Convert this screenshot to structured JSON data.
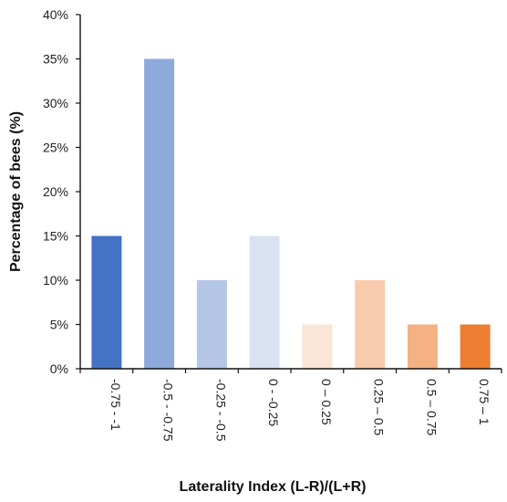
{
  "chart_data": {
    "type": "bar",
    "categories": [
      "-0.75 - -1",
      "-0.5 - -0.75",
      "-0.25 - -0.5",
      "0 - -0.25",
      "0 – 0.25",
      "0.25 – 0.5",
      "0.5 – 0.75",
      "0.75 – 1"
    ],
    "values": [
      15,
      35,
      10,
      15,
      5,
      10,
      5,
      5
    ],
    "bar_colors": [
      "#4472c4",
      "#8eaadb",
      "#b4c7e7",
      "#d9e2f3",
      "#fbe5d6",
      "#f8cbad",
      "#f4b183",
      "#ed7d31"
    ],
    "ylim": [
      0,
      40
    ],
    "yticks": [
      0,
      5,
      10,
      15,
      20,
      25,
      30,
      35,
      40
    ],
    "ytick_labels": [
      "0%",
      "5%",
      "10%",
      "15%",
      "20%",
      "25%",
      "30%",
      "35%",
      "40%"
    ],
    "xlabel": "Laterality Index (L-R)/(L+R)",
    "ylabel": "Percentage of bees (%)",
    "grid": false,
    "legend": "none"
  }
}
